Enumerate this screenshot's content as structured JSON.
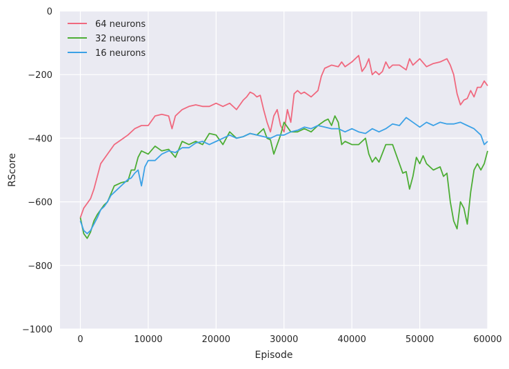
{
  "chart_data": {
    "type": "line",
    "xlabel": "Episode",
    "ylabel": "RScore",
    "xlim": [
      -3000,
      60000
    ],
    "ylim": [
      -1000,
      0
    ],
    "x_ticks": [
      0,
      10000,
      20000,
      30000,
      40000,
      50000,
      60000
    ],
    "x_tick_labels": [
      "0",
      "10000",
      "20000",
      "30000",
      "40000",
      "50000",
      "60000"
    ],
    "y_ticks": [
      -1000,
      -800,
      -600,
      -400,
      -200,
      0
    ],
    "y_tick_labels": [
      "−1000",
      "−800",
      "−600",
      "−400",
      "−200",
      "0"
    ],
    "grid": true,
    "legend_position": "top-left",
    "colors": {
      "background": "#eaeaf2",
      "grid": "#ffffff",
      "text": "#262626"
    },
    "series": [
      {
        "name": "64 neurons",
        "color": "#f0687e",
        "x": [
          0,
          500,
          1000,
          1500,
          2000,
          2500,
          3000,
          4000,
          5000,
          6000,
          7000,
          8000,
          9000,
          10000,
          11000,
          12000,
          13000,
          13500,
          14000,
          15000,
          16000,
          17000,
          18000,
          19000,
          20000,
          21000,
          22000,
          23000,
          24000,
          24500,
          25000,
          25500,
          26000,
          26500,
          27000,
          27500,
          28000,
          28500,
          29000,
          29500,
          30000,
          30500,
          31000,
          31500,
          32000,
          32500,
          33000,
          34000,
          35000,
          35500,
          36000,
          37000,
          38000,
          38500,
          39000,
          40000,
          41000,
          41500,
          42000,
          42500,
          43000,
          43500,
          44000,
          44500,
          45000,
          45500,
          46000,
          47000,
          48000,
          48500,
          49000,
          50000,
          51000,
          52000,
          53000,
          54000,
          54500,
          55000,
          55500,
          56000,
          56500,
          57000,
          57500,
          58000,
          58500,
          59000,
          59500,
          60000
        ],
        "y": [
          -650,
          -620,
          -605,
          -590,
          -560,
          -520,
          -480,
          -450,
          -420,
          -405,
          -390,
          -370,
          -360,
          -360,
          -330,
          -325,
          -330,
          -370,
          -330,
          -310,
          -300,
          -295,
          -300,
          -300,
          -290,
          -300,
          -290,
          -310,
          -280,
          -270,
          -255,
          -260,
          -270,
          -265,
          -310,
          -350,
          -380,
          -330,
          -310,
          -360,
          -380,
          -310,
          -350,
          -260,
          -250,
          -260,
          -255,
          -270,
          -250,
          -205,
          -180,
          -170,
          -175,
          -160,
          -175,
          -160,
          -140,
          -190,
          -175,
          -150,
          -200,
          -190,
          -200,
          -190,
          -160,
          -180,
          -170,
          -170,
          -185,
          -150,
          -170,
          -150,
          -175,
          -165,
          -160,
          -150,
          -170,
          -200,
          -260,
          -295,
          -280,
          -275,
          -250,
          -270,
          -240,
          -240,
          -220,
          -235
        ]
      },
      {
        "name": "32 neurons",
        "color": "#4cad34",
        "x": [
          0,
          500,
          1000,
          1500,
          2000,
          2500,
          3000,
          3500,
          4000,
          4500,
          5000,
          6000,
          7000,
          7500,
          8000,
          8500,
          9000,
          10000,
          11000,
          12000,
          13000,
          14000,
          15000,
          16000,
          17000,
          18000,
          19000,
          20000,
          21000,
          22000,
          23000,
          24000,
          25000,
          26000,
          27000,
          27500,
          28000,
          28500,
          29000,
          29500,
          30000,
          31000,
          32000,
          33000,
          34000,
          35000,
          36000,
          36500,
          37000,
          37500,
          38000,
          38500,
          39000,
          40000,
          41000,
          42000,
          42500,
          43000,
          43500,
          44000,
          45000,
          46000,
          47000,
          47500,
          48000,
          48500,
          49000,
          49500,
          50000,
          50500,
          51000,
          52000,
          53000,
          53500,
          54000,
          54500,
          55000,
          55500,
          56000,
          56500,
          57000,
          57500,
          58000,
          58500,
          59000,
          59500,
          60000
        ],
        "y": [
          -650,
          -700,
          -715,
          -695,
          -660,
          -640,
          -625,
          -610,
          -600,
          -575,
          -550,
          -540,
          -535,
          -500,
          -500,
          -460,
          -440,
          -450,
          -425,
          -440,
          -435,
          -460,
          -410,
          -420,
          -410,
          -420,
          -385,
          -390,
          -420,
          -380,
          -400,
          -395,
          -385,
          -390,
          -370,
          -400,
          -405,
          -450,
          -420,
          -390,
          -350,
          -380,
          -380,
          -370,
          -380,
          -360,
          -345,
          -340,
          -360,
          -330,
          -350,
          -420,
          -410,
          -420,
          -420,
          -400,
          -450,
          -475,
          -460,
          -475,
          -420,
          -420,
          -480,
          -510,
          -505,
          -560,
          -520,
          -460,
          -480,
          -455,
          -480,
          -500,
          -490,
          -520,
          -510,
          -600,
          -660,
          -685,
          -600,
          -620,
          -670,
          -570,
          -500,
          -480,
          -500,
          -480,
          -440
        ]
      },
      {
        "name": "16 neurons",
        "color": "#3ba1e6",
        "x": [
          0,
          500,
          1000,
          1500,
          2000,
          2500,
          3000,
          3500,
          4000,
          4500,
          5000,
          6000,
          7000,
          7500,
          8000,
          8500,
          9000,
          9500,
          10000,
          11000,
          12000,
          13000,
          14000,
          15000,
          16000,
          17000,
          18000,
          19000,
          20000,
          21000,
          22000,
          23000,
          24000,
          25000,
          26000,
          27000,
          28000,
          29000,
          30000,
          31000,
          32000,
          33000,
          34000,
          35000,
          36000,
          37000,
          38000,
          39000,
          40000,
          41000,
          42000,
          43000,
          44000,
          45000,
          46000,
          47000,
          48000,
          49000,
          50000,
          51000,
          52000,
          53000,
          54000,
          55000,
          56000,
          57000,
          58000,
          59000,
          59500,
          60000
        ],
        "y": [
          -660,
          -690,
          -700,
          -690,
          -670,
          -650,
          -625,
          -615,
          -600,
          -580,
          -570,
          -550,
          -530,
          -525,
          -510,
          -500,
          -550,
          -490,
          -470,
          -470,
          -450,
          -440,
          -445,
          -430,
          -430,
          -415,
          -410,
          -420,
          -410,
          -400,
          -390,
          -400,
          -395,
          -385,
          -390,
          -395,
          -400,
          -390,
          -390,
          -380,
          -375,
          -365,
          -370,
          -360,
          -365,
          -370,
          -370,
          -380,
          -370,
          -380,
          -385,
          -370,
          -380,
          -370,
          -355,
          -360,
          -335,
          -350,
          -365,
          -350,
          -360,
          -350,
          -355,
          -355,
          -350,
          -360,
          -370,
          -390,
          -420,
          -410
        ]
      }
    ]
  }
}
